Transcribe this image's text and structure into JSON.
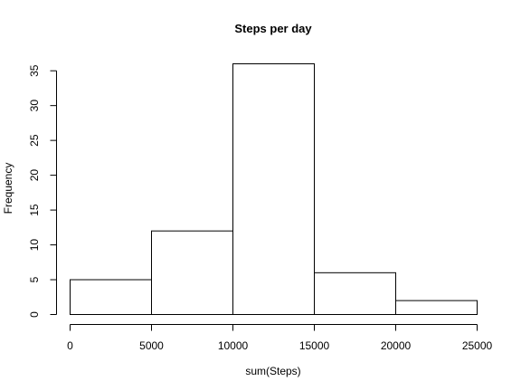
{
  "chart_data": {
    "type": "bar",
    "title": "Steps per day",
    "xlabel": "sum(Steps)",
    "ylabel": "Frequency",
    "bins": [
      {
        "from": 0,
        "to": 5000,
        "count": 5
      },
      {
        "from": 5000,
        "to": 10000,
        "count": 12
      },
      {
        "from": 10000,
        "to": 15000,
        "count": 36
      },
      {
        "from": 15000,
        "to": 20000,
        "count": 6
      },
      {
        "from": 20000,
        "to": 25000,
        "count": 2
      }
    ],
    "xlim": [
      0,
      25000
    ],
    "ylim": [
      0,
      36
    ],
    "x_ticks": [
      0,
      5000,
      10000,
      15000,
      20000,
      25000
    ],
    "y_ticks": [
      0,
      5,
      10,
      15,
      20,
      25,
      30,
      35
    ],
    "grid": false,
    "legend": "none"
  }
}
